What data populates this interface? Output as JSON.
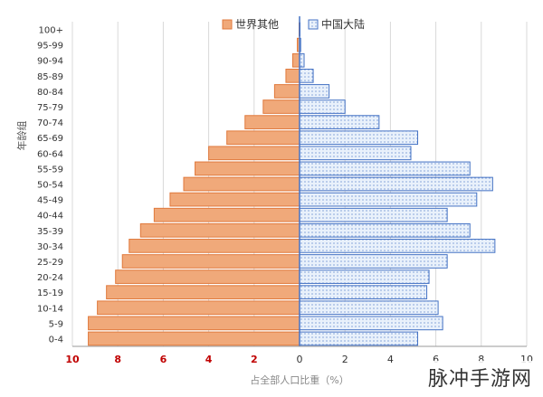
{
  "chart_data": {
    "type": "bar",
    "orientation": "horizontal-pyramid",
    "ylabel": "年龄组",
    "xlabel": "占全部人口比重（%）",
    "categories": [
      "0-4",
      "5-9",
      "10-14",
      "15-19",
      "20-24",
      "25-29",
      "30-34",
      "35-39",
      "40-44",
      "45-49",
      "50-54",
      "55-59",
      "60-64",
      "65-69",
      "70-74",
      "75-79",
      "80-84",
      "85-89",
      "90-94",
      "95-99",
      "100+"
    ],
    "series": [
      {
        "name": "世界其他",
        "side": "left",
        "color": "#f0a97a",
        "stroke": "#e0793c",
        "values": [
          9.3,
          9.3,
          8.9,
          8.5,
          8.1,
          7.8,
          7.5,
          7.0,
          6.4,
          5.7,
          5.1,
          4.6,
          4.0,
          3.2,
          2.4,
          1.6,
          1.1,
          0.6,
          0.3,
          0.1,
          0.02
        ]
      },
      {
        "name": "中国大陆",
        "side": "right",
        "color": "#e9f1fb",
        "stroke": "#4472c4",
        "values": [
          5.2,
          6.3,
          6.1,
          5.6,
          5.7,
          6.5,
          8.6,
          7.5,
          6.5,
          7.8,
          8.5,
          7.5,
          4.9,
          5.2,
          3.5,
          2.0,
          1.3,
          0.6,
          0.2,
          0.05,
          0.01
        ]
      }
    ],
    "xticks": [
      "10",
      "8",
      "6",
      "4",
      "2",
      "0",
      "2",
      "4",
      "6",
      "8",
      "10"
    ],
    "xlim": [
      -10,
      10
    ],
    "legend_position": "top",
    "grid": "vertical"
  },
  "watermark": "脉冲手游网"
}
